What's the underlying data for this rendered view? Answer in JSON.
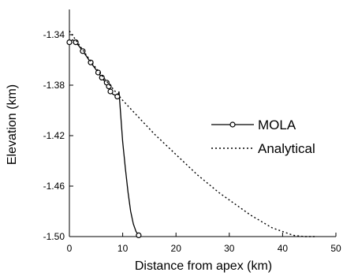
{
  "chart_data": {
    "type": "line",
    "xlabel": "Distance from apex (km)",
    "ylabel": "Elevation (km)",
    "xlim": [
      0,
      50
    ],
    "ylim": [
      -1.5,
      -1.32
    ],
    "xticks": [
      0,
      10,
      20,
      30,
      40,
      50
    ],
    "xtick_labels": [
      "0",
      "10",
      "20",
      "30",
      "40",
      "50"
    ],
    "yticks": [
      -1.5,
      -1.46,
      -1.42,
      -1.38,
      -1.34
    ],
    "ytick_labels": [
      "-1.50",
      "-1.46",
      "-1.42",
      "-1.38",
      "-1.34"
    ],
    "grid": false,
    "legend_position": "right",
    "series": [
      {
        "name": "MOLA",
        "style": "solid-with-circle-markers",
        "x": [
          0,
          0.6,
          1.2,
          1.8,
          2.5,
          3.2,
          4.0,
          4.7,
          5.4,
          6.1,
          6.8,
          7.4,
          7.7,
          8.1,
          8.6,
          9.1,
          9.3,
          9.6,
          10.0,
          10.5,
          11.0,
          11.5,
          12.0,
          12.5,
          13.0
        ],
        "y": [
          -1.346,
          -1.344,
          -1.346,
          -1.349,
          -1.353,
          -1.357,
          -1.362,
          -1.366,
          -1.37,
          -1.374,
          -1.378,
          -1.381,
          -1.385,
          -1.387,
          -1.388,
          -1.389,
          -1.385,
          -1.402,
          -1.425,
          -1.446,
          -1.465,
          -1.48,
          -1.49,
          -1.496,
          -1.499
        ],
        "markers_x": [
          0,
          1.2,
          2.5,
          4.0,
          5.4,
          6.1,
          7.0,
          7.4,
          7.7,
          9.0,
          13.0
        ],
        "markers_y": [
          -1.346,
          -1.346,
          -1.353,
          -1.362,
          -1.37,
          -1.374,
          -1.378,
          -1.381,
          -1.385,
          -1.389,
          -1.499
        ]
      },
      {
        "name": "Analytical",
        "style": "dotted",
        "x": [
          0,
          2,
          4,
          6,
          8,
          10,
          12,
          14,
          16,
          18,
          20,
          22,
          24,
          26,
          28,
          30,
          32,
          34,
          36,
          38,
          40,
          42,
          44,
          46
        ],
        "y": [
          -1.337,
          -1.349,
          -1.361,
          -1.372,
          -1.382,
          -1.392,
          -1.401,
          -1.41,
          -1.419,
          -1.427,
          -1.435,
          -1.443,
          -1.451,
          -1.458,
          -1.465,
          -1.471,
          -1.477,
          -1.483,
          -1.488,
          -1.493,
          -1.496,
          -1.499,
          -1.5,
          -1.5
        ]
      }
    ]
  },
  "legend": {
    "mola_label": "MOLA",
    "analytical_label": "Analytical"
  }
}
